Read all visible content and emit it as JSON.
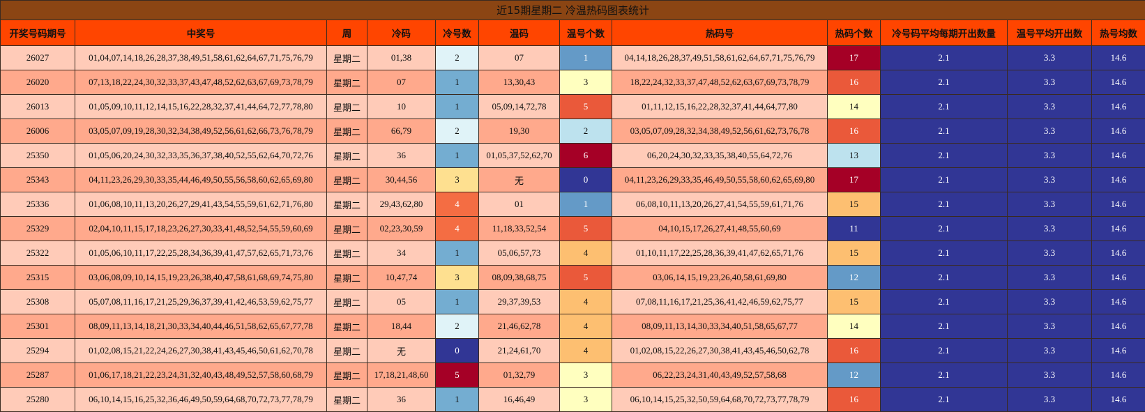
{
  "title": "近15期星期二 冷温热码图表统计",
  "table": {
    "columns": [
      "开奖号码期号",
      "中奖号",
      "周",
      "冷码",
      "冷号数",
      "温码",
      "温号个数",
      "热码号",
      "热码个数",
      "冷号码平均每期开出数量",
      "温号平均开出数",
      "热号均数"
    ],
    "rows": [
      [
        26027,
        "01,04,07,14,18,26,28,37,38,49,51,58,61,62,64,67,71,75,76,79",
        "星期二",
        "01,38",
        2,
        "07",
        1,
        "04,14,18,26,28,37,49,51,58,61,62,64,67,71,75,76,79",
        17,
        2.1,
        3.3,
        14.6
      ],
      [
        26020,
        "07,13,18,22,24,30,32,33,37,43,47,48,52,62,63,67,69,73,78,79",
        "星期二",
        "07",
        1,
        "13,30,43",
        3,
        "18,22,24,32,33,37,47,48,52,62,63,67,69,73,78,79",
        16,
        2.1,
        3.3,
        14.6
      ],
      [
        26013,
        "01,05,09,10,11,12,14,15,16,22,28,32,37,41,44,64,72,77,78,80",
        "星期二",
        "10",
        1,
        "05,09,14,72,78",
        5,
        "01,11,12,15,16,22,28,32,37,41,44,64,77,80",
        14,
        2.1,
        3.3,
        14.6
      ],
      [
        26006,
        "03,05,07,09,19,28,30,32,34,38,49,52,56,61,62,66,73,76,78,79",
        "星期二",
        "66,79",
        2,
        "19,30",
        2,
        "03,05,07,09,28,32,34,38,49,52,56,61,62,73,76,78",
        16,
        2.1,
        3.3,
        14.6
      ],
      [
        25350,
        "01,05,06,20,24,30,32,33,35,36,37,38,40,52,55,62,64,70,72,76",
        "星期二",
        "36",
        1,
        "01,05,37,52,62,70",
        6,
        "06,20,24,30,32,33,35,38,40,55,64,72,76",
        13,
        2.1,
        3.3,
        14.6
      ],
      [
        25343,
        "04,11,23,26,29,30,33,35,44,46,49,50,55,56,58,60,62,65,69,80",
        "星期二",
        "30,44,56",
        3,
        "无",
        0,
        "04,11,23,26,29,33,35,46,49,50,55,58,60,62,65,69,80",
        17,
        2.1,
        3.3,
        14.6
      ],
      [
        25336,
        "01,06,08,10,11,13,20,26,27,29,41,43,54,55,59,61,62,71,76,80",
        "星期二",
        "29,43,62,80",
        4,
        "01",
        1,
        "06,08,10,11,13,20,26,27,41,54,55,59,61,71,76",
        15,
        2.1,
        3.3,
        14.6
      ],
      [
        25329,
        "02,04,10,11,15,17,18,23,26,27,30,33,41,48,52,54,55,59,60,69",
        "星期二",
        "02,23,30,59",
        4,
        "11,18,33,52,54",
        5,
        "04,10,15,17,26,27,41,48,55,60,69",
        11,
        2.1,
        3.3,
        14.6
      ],
      [
        25322,
        "01,05,06,10,11,17,22,25,28,34,36,39,41,47,57,62,65,71,73,76",
        "星期二",
        "34",
        1,
        "05,06,57,73",
        4,
        "01,10,11,17,22,25,28,36,39,41,47,62,65,71,76",
        15,
        2.1,
        3.3,
        14.6
      ],
      [
        25315,
        "03,06,08,09,10,14,15,19,23,26,38,40,47,58,61,68,69,74,75,80",
        "星期二",
        "10,47,74",
        3,
        "08,09,38,68,75",
        5,
        "03,06,14,15,19,23,26,40,58,61,69,80",
        12,
        2.1,
        3.3,
        14.6
      ],
      [
        25308,
        "05,07,08,11,16,17,21,25,29,36,37,39,41,42,46,53,59,62,75,77",
        "星期二",
        "05",
        1,
        "29,37,39,53",
        4,
        "07,08,11,16,17,21,25,36,41,42,46,59,62,75,77",
        15,
        2.1,
        3.3,
        14.6
      ],
      [
        25301,
        "08,09,11,13,14,18,21,30,33,34,40,44,46,51,58,62,65,67,77,78",
        "星期二",
        "18,44",
        2,
        "21,46,62,78",
        4,
        "08,09,11,13,14,30,33,34,40,51,58,65,67,77",
        14,
        2.1,
        3.3,
        14.6
      ],
      [
        25294,
        "01,02,08,15,21,22,24,26,27,30,38,41,43,45,46,50,61,62,70,78",
        "星期二",
        "无",
        0,
        "21,24,61,70",
        4,
        "01,02,08,15,22,26,27,30,38,41,43,45,46,50,62,78",
        16,
        2.1,
        3.3,
        14.6
      ],
      [
        25287,
        "01,06,17,18,21,22,23,24,31,32,40,43,48,49,52,57,58,60,68,79",
        "星期二",
        "17,18,21,48,60",
        5,
        "01,32,79",
        3,
        "06,22,23,24,31,40,43,49,52,57,58,68",
        12,
        2.1,
        3.3,
        14.6
      ],
      [
        25280,
        "06,10,14,15,16,25,32,36,46,49,50,59,64,68,70,72,73,77,78,79",
        "星期二",
        "36",
        1,
        "16,46,49",
        3,
        "06,10,14,15,25,32,50,59,64,68,70,72,73,77,78,79",
        16,
        2.1,
        3.3,
        14.6
      ]
    ]
  }
}
